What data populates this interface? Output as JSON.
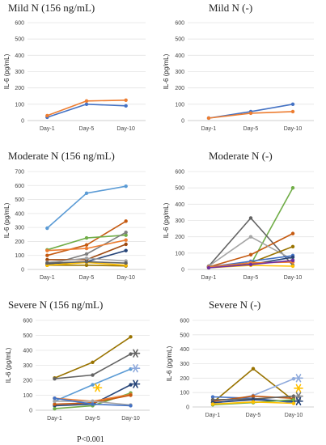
{
  "pvalue": "P<0.001",
  "chart_data": [
    {
      "type": "line",
      "title": "Mild N (156 ng/mL)",
      "ylabel": "IL-6 (pg/mL)",
      "categories": [
        "Day-1",
        "Day-5",
        "Day-10"
      ],
      "ylim": [
        0,
        600
      ],
      "yticks": [
        0,
        100,
        200,
        300,
        400,
        500,
        600
      ],
      "series": [
        {
          "color": "#4472C4",
          "values": [
            20,
            100,
            90
          ]
        },
        {
          "color": "#ED7D31",
          "values": [
            30,
            120,
            125
          ]
        }
      ],
      "markers": []
    },
    {
      "type": "line",
      "title": "Mild N (-)",
      "ylabel": "IL-6 (pg/mL)",
      "categories": [
        "Day-1",
        "Day-5",
        "Day-10"
      ],
      "ylim": [
        0,
        600
      ],
      "yticks": [
        0,
        100,
        200,
        300,
        400,
        500,
        600
      ],
      "series": [
        {
          "color": "#4472C4",
          "values": [
            15,
            55,
            100
          ]
        },
        {
          "color": "#ED7D31",
          "values": [
            15,
            45,
            55
          ]
        }
      ],
      "markers": []
    },
    {
      "type": "line",
      "title": "Moderate N (156 ng/mL)",
      "ylabel": "IL-6 (pg/mL)",
      "categories": [
        "Day-1",
        "Day-5",
        "Day-10"
      ],
      "ylim": [
        0,
        700
      ],
      "yticks": [
        0,
        100,
        200,
        300,
        400,
        500,
        600,
        700
      ],
      "series": [
        {
          "color": "#5B9BD5",
          "values": [
            295,
            545,
            595
          ]
        },
        {
          "color": "#C55A11",
          "values": [
            100,
            175,
            345
          ]
        },
        {
          "color": "#70AD47",
          "values": [
            140,
            225,
            245
          ]
        },
        {
          "color": "#7F7F7F",
          "values": [
            30,
            110,
            265
          ]
        },
        {
          "color": "#ED7D31",
          "values": [
            135,
            150,
            210
          ]
        },
        {
          "color": "#9E480E",
          "values": [
            70,
            70,
            180
          ]
        },
        {
          "color": "#997300",
          "values": [
            30,
            30,
            25
          ]
        },
        {
          "color": "#264478",
          "values": [
            40,
            55,
            135
          ]
        },
        {
          "color": "#A5A5A5",
          "values": [
            50,
            80,
            60
          ]
        },
        {
          "color": "#FFC000",
          "values": [
            30,
            50,
            30
          ]
        },
        {
          "color": "#636363",
          "values": [
            45,
            55,
            45
          ]
        }
      ],
      "markers": []
    },
    {
      "type": "line",
      "title": "Moderate N (-)",
      "ylabel": "IL-6 (pg/mL)",
      "categories": [
        "Day-1",
        "Day-5",
        "Day-10"
      ],
      "ylim": [
        0,
        600
      ],
      "yticks": [
        0,
        100,
        200,
        300,
        400,
        500,
        600
      ],
      "series": [
        {
          "color": "#70AD47",
          "values": [
            20,
            30,
            500
          ]
        },
        {
          "color": "#636363",
          "values": [
            20,
            315,
            25
          ]
        },
        {
          "color": "#C55A11",
          "values": [
            15,
            90,
            220
          ]
        },
        {
          "color": "#A5A5A5",
          "values": [
            20,
            200,
            60
          ]
        },
        {
          "color": "#997300",
          "values": [
            15,
            40,
            140
          ]
        },
        {
          "color": "#4472C4",
          "values": [
            15,
            50,
            85
          ]
        },
        {
          "color": "#264478",
          "values": [
            15,
            30,
            75
          ]
        },
        {
          "color": "#ED7D31",
          "values": [
            15,
            40,
            45
          ]
        },
        {
          "color": "#FFC000",
          "values": [
            10,
            25,
            20
          ]
        },
        {
          "color": "#7030A0",
          "values": [
            10,
            30,
            55
          ]
        }
      ],
      "markers": []
    },
    {
      "type": "line",
      "title": "Severe N (156 ng/mL)",
      "ylabel": "IL-6 (pg/mL)",
      "categories": [
        "Day-1",
        "Day-5",
        "Day-10"
      ],
      "ylim": [
        0,
        600
      ],
      "yticks": [
        0,
        100,
        200,
        300,
        400,
        500,
        600
      ],
      "series": [
        {
          "color": "#997300",
          "values": [
            215,
            320,
            490
          ]
        },
        {
          "color": "#636363",
          "values": [
            210,
            235,
            375
          ]
        },
        {
          "color": "#5B9BD5",
          "values": [
            60,
            170,
            275
          ]
        },
        {
          "color": "#264478",
          "values": [
            30,
            40,
            170
          ]
        },
        {
          "color": "#70AD47",
          "values": [
            10,
            30,
            115
          ]
        },
        {
          "color": "#ED7D31",
          "values": [
            80,
            60,
            105
          ]
        },
        {
          "color": "#C55A11",
          "values": [
            40,
            50,
            100
          ]
        },
        {
          "color": "#A5A5A5",
          "values": [
            60,
            60,
            35
          ]
        },
        {
          "color": "#4472C4",
          "values": [
            80,
            40,
            30
          ]
        }
      ],
      "markers": [
        {
          "color": "#636363",
          "x": "Day-10",
          "y": 380
        },
        {
          "color": "#8FAADC",
          "x": "Day-10",
          "y": 280
        },
        {
          "color": "#264478",
          "x": "Day-10",
          "y": 175
        },
        {
          "color": "#FFC000",
          "x": "Day-5",
          "y": 150
        }
      ]
    },
    {
      "type": "line",
      "title": "Severe N (-)",
      "ylabel": "IL-6 (pg/mL)",
      "categories": [
        "Day-1",
        "Day-5",
        "Day-10"
      ],
      "ylim": [
        0,
        600
      ],
      "yticks": [
        0,
        100,
        200,
        300,
        400,
        500,
        600
      ],
      "series": [
        {
          "color": "#997300",
          "values": [
            30,
            265,
            45
          ]
        },
        {
          "color": "#8FAADC",
          "values": [
            20,
            80,
            195
          ]
        },
        {
          "color": "#4472C4",
          "values": [
            70,
            60,
            30
          ]
        },
        {
          "color": "#C55A11",
          "values": [
            40,
            75,
            60
          ]
        },
        {
          "color": "#636363",
          "values": [
            50,
            55,
            75
          ]
        },
        {
          "color": "#264478",
          "values": [
            30,
            50,
            40
          ]
        },
        {
          "color": "#70AD47",
          "values": [
            15,
            30,
            50
          ]
        },
        {
          "color": "#FFC000",
          "values": [
            20,
            35,
            25
          ]
        }
      ],
      "markers": [
        {
          "color": "#8FAADC",
          "x": "Day-10",
          "y": 200
        },
        {
          "color": "#FFC000",
          "x": "Day-10",
          "y": 130
        },
        {
          "color": "#7F7F7F",
          "x": "Day-10",
          "y": 75
        },
        {
          "color": "#264478",
          "x": "Day-10",
          "y": 40
        }
      ]
    }
  ]
}
